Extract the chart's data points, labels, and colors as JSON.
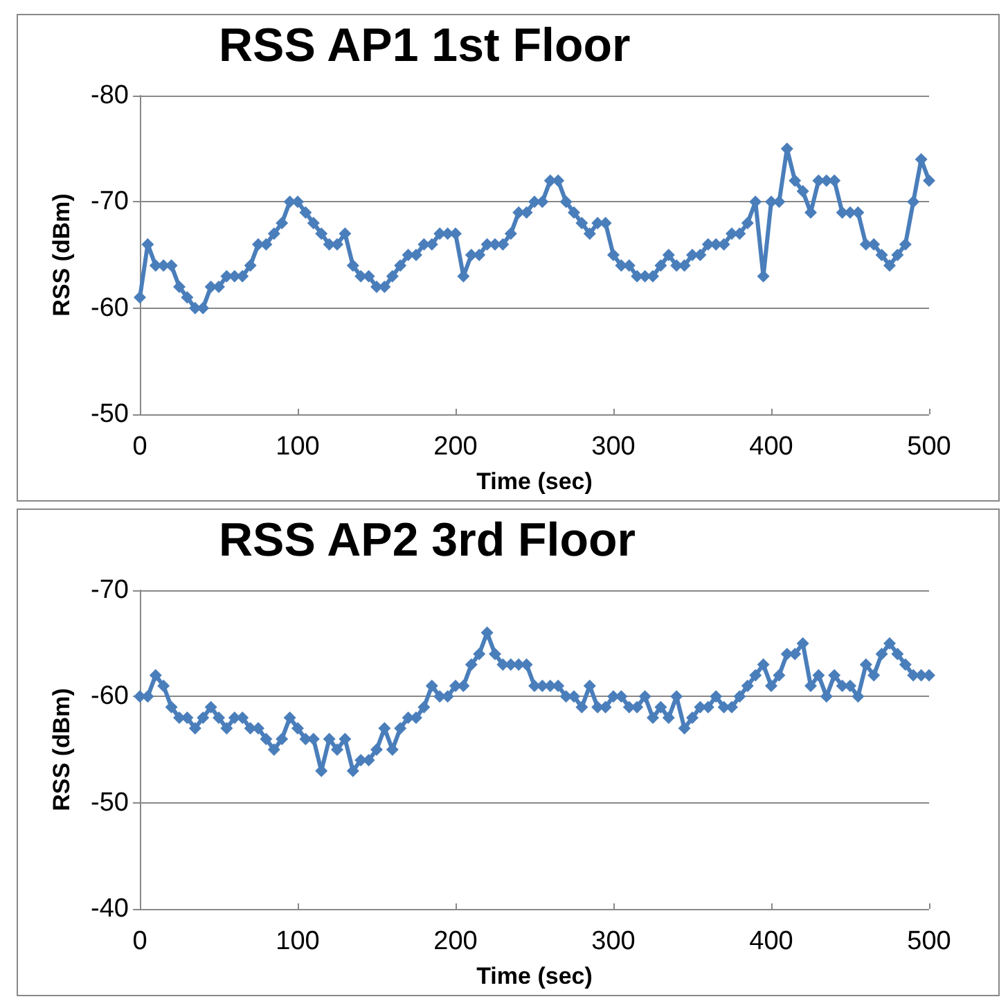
{
  "chart_data": [
    {
      "type": "line",
      "title": "RSS AP1 1st Floor",
      "xlabel": "Time (sec)",
      "ylabel": "RSS (dBm)",
      "x": [
        0,
        5,
        10,
        15,
        20,
        25,
        30,
        35,
        40,
        45,
        50,
        55,
        60,
        65,
        70,
        75,
        80,
        85,
        90,
        95,
        100,
        105,
        110,
        115,
        120,
        125,
        130,
        135,
        140,
        145,
        150,
        155,
        160,
        165,
        170,
        175,
        180,
        185,
        190,
        195,
        200,
        205,
        210,
        215,
        220,
        225,
        230,
        235,
        240,
        245,
        250,
        255,
        260,
        265,
        270,
        275,
        280,
        285,
        290,
        295,
        300,
        305,
        310,
        315,
        320,
        325,
        330,
        335,
        340,
        345,
        350,
        355,
        360,
        365,
        370,
        375,
        380,
        385,
        390,
        395,
        400,
        405,
        410,
        415,
        420,
        425,
        430,
        435,
        440,
        445,
        450,
        455,
        460,
        465,
        470,
        475,
        480,
        485,
        490,
        495,
        500
      ],
      "series": [
        {
          "color": "#4a7ebb",
          "values": [
            -61,
            -66,
            -64,
            -64,
            -64,
            -62,
            -61,
            -60,
            -60,
            -62,
            -62,
            -63,
            -63,
            -63,
            -64,
            -66,
            -66,
            -67,
            -68,
            -70,
            -70,
            -69,
            -68,
            -67,
            -66,
            -66,
            -67,
            -64,
            -63,
            -63,
            -62,
            -62,
            -63,
            -64,
            -65,
            -65,
            -66,
            -66,
            -67,
            -67,
            -67,
            -63,
            -65,
            -65,
            -66,
            -66,
            -66,
            -67,
            -69,
            -69,
            -70,
            -70,
            -72,
            -72,
            -70,
            -69,
            -68,
            -67,
            -68,
            -68,
            -65,
            -64,
            -64,
            -63,
            -63,
            -63,
            -64,
            -65,
            -64,
            -64,
            -65,
            -65,
            -66,
            -66,
            -66,
            -67,
            -67,
            -68,
            -70,
            -63,
            -70,
            -70,
            -75,
            -72,
            -71,
            -69,
            -72,
            -72,
            -72,
            -69,
            -69,
            -69,
            -66,
            -66,
            -65,
            -64,
            -65,
            -66,
            -70,
            -74,
            -72
          ]
        }
      ],
      "xlim": [
        0,
        500
      ],
      "xticks": [
        0,
        100,
        200,
        300,
        400,
        500
      ],
      "ylim": [
        -50,
        -80
      ],
      "yticks": [
        -80,
        -70,
        -60,
        -50
      ],
      "grid": "y",
      "marker": "diamond",
      "line_style": "solid"
    },
    {
      "type": "line",
      "title": "RSS AP2 3rd Floor",
      "xlabel": "Time (sec)",
      "ylabel": "RSS (dBm)",
      "x": [
        0,
        5,
        10,
        15,
        20,
        25,
        30,
        35,
        40,
        45,
        50,
        55,
        60,
        65,
        70,
        75,
        80,
        85,
        90,
        95,
        100,
        105,
        110,
        115,
        120,
        125,
        130,
        135,
        140,
        145,
        150,
        155,
        160,
        165,
        170,
        175,
        180,
        185,
        190,
        195,
        200,
        205,
        210,
        215,
        220,
        225,
        230,
        235,
        240,
        245,
        250,
        255,
        260,
        265,
        270,
        275,
        280,
        285,
        290,
        295,
        300,
        305,
        310,
        315,
        320,
        325,
        330,
        335,
        340,
        345,
        350,
        355,
        360,
        365,
        370,
        375,
        380,
        385,
        390,
        395,
        400,
        405,
        410,
        415,
        420,
        425,
        430,
        435,
        440,
        445,
        450,
        455,
        460,
        465,
        470,
        475,
        480,
        485,
        490,
        495,
        500
      ],
      "series": [
        {
          "color": "#4a7ebb",
          "values": [
            -60,
            -60,
            -62,
            -61,
            -59,
            -58,
            -58,
            -57,
            -58,
            -59,
            -58,
            -57,
            -58,
            -58,
            -57,
            -57,
            -56,
            -55,
            -56,
            -58,
            -57,
            -56,
            -56,
            -53,
            -56,
            -55,
            -56,
            -53,
            -54,
            -54,
            -55,
            -57,
            -55,
            -57,
            -58,
            -58,
            -59,
            -61,
            -60,
            -60,
            -61,
            -61,
            -63,
            -64,
            -66,
            -64,
            -63,
            -63,
            -63,
            -63,
            -61,
            -61,
            -61,
            -61,
            -60,
            -60,
            -59,
            -61,
            -59,
            -59,
            -60,
            -60,
            -59,
            -59,
            -60,
            -58,
            -59,
            -58,
            -60,
            -57,
            -58,
            -59,
            -59,
            -60,
            -59,
            -59,
            -60,
            -61,
            -62,
            -63,
            -61,
            -62,
            -64,
            -64,
            -65,
            -61,
            -62,
            -60,
            -62,
            -61,
            -61,
            -60,
            -63,
            -62,
            -64,
            -65,
            -64,
            -63,
            -62,
            -62,
            -62
          ]
        }
      ],
      "xlim": [
        0,
        500
      ],
      "xticks": [
        0,
        100,
        200,
        300,
        400,
        500
      ],
      "ylim": [
        -40,
        -70
      ],
      "yticks": [
        -70,
        -60,
        -50,
        -40
      ],
      "grid": "y",
      "marker": "diamond",
      "line_style": "solid"
    }
  ]
}
